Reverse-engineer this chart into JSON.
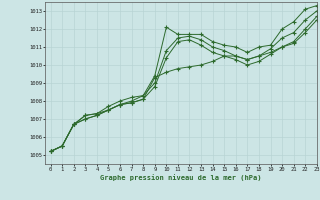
{
  "title": "Graphe pression niveau de la mer (hPa)",
  "bg_color": "#cce5e5",
  "line_color": "#2d6a2d",
  "grid_color": "#b8d4d4",
  "xlim": [
    -0.5,
    23
  ],
  "ylim": [
    1004.5,
    1013.5
  ],
  "xticks": [
    0,
    1,
    2,
    3,
    4,
    5,
    6,
    7,
    8,
    9,
    10,
    11,
    12,
    13,
    14,
    15,
    16,
    17,
    18,
    19,
    20,
    21,
    22,
    23
  ],
  "yticks": [
    1005,
    1006,
    1007,
    1008,
    1009,
    1010,
    1011,
    1012,
    1013
  ],
  "series": [
    [
      1005.2,
      1005.5,
      1006.7,
      1007.2,
      1007.3,
      1007.7,
      1008.0,
      1008.2,
      1008.3,
      1009.4,
      1012.1,
      1011.7,
      1011.7,
      1011.7,
      1011.3,
      1011.1,
      1011.0,
      1010.7,
      1011.0,
      1011.1,
      1012.0,
      1012.4,
      1013.1,
      1013.3
    ],
    [
      1005.2,
      1005.5,
      1006.7,
      1007.2,
      1007.3,
      1007.5,
      1007.8,
      1008.0,
      1008.3,
      1009.0,
      1010.8,
      1011.5,
      1011.6,
      1011.4,
      1011.0,
      1010.8,
      1010.5,
      1010.3,
      1010.5,
      1010.9,
      1011.5,
      1011.8,
      1012.5,
      1013.0
    ],
    [
      1005.2,
      1005.5,
      1006.7,
      1007.0,
      1007.2,
      1007.5,
      1007.8,
      1007.9,
      1008.1,
      1008.8,
      1010.4,
      1011.3,
      1011.4,
      1011.1,
      1010.7,
      1010.5,
      1010.3,
      1010.0,
      1010.2,
      1010.6,
      1011.0,
      1011.3,
      1012.0,
      1012.7
    ],
    [
      1005.2,
      1005.5,
      1006.7,
      1007.0,
      1007.2,
      1007.5,
      1007.8,
      1007.9,
      1008.1,
      1009.3,
      1009.6,
      1009.8,
      1009.9,
      1010.0,
      1010.2,
      1010.5,
      1010.5,
      1010.3,
      1010.5,
      1010.7,
      1011.0,
      1011.2,
      1011.8,
      1012.5
    ]
  ]
}
